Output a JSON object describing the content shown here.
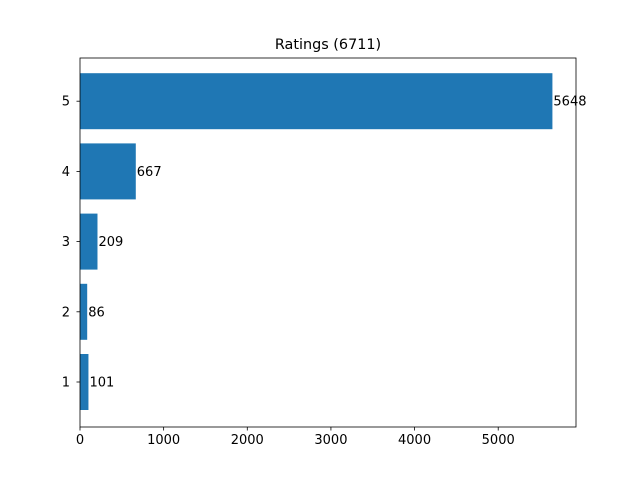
{
  "chart_data": {
    "type": "bar",
    "orientation": "horizontal",
    "title": "Ratings (6711)",
    "xlabel": "",
    "ylabel": "",
    "categories": [
      "1",
      "2",
      "3",
      "4",
      "5"
    ],
    "values": [
      101,
      86,
      209,
      667,
      5648
    ],
    "data_labels": [
      "101",
      "86",
      "209",
      "667",
      "5648"
    ],
    "xlim": [
      0,
      5930
    ],
    "xticks": [
      0,
      1000,
      2000,
      3000,
      4000,
      5000
    ],
    "xtick_labels": [
      "0",
      "1000",
      "2000",
      "3000",
      "4000",
      "5000"
    ],
    "grid": false,
    "legend": "none",
    "bar_color": "#1f77b4"
  }
}
